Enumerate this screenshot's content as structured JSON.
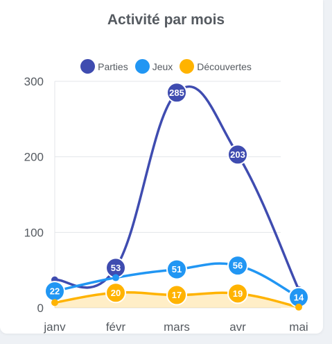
{
  "chart_data": {
    "type": "line",
    "title": "Activité par mois",
    "categories": [
      "janv",
      "févr",
      "mars",
      "avr",
      "mai"
    ],
    "ylim": [
      0,
      300
    ],
    "yticks": [
      0,
      100,
      200,
      300
    ],
    "grid": true,
    "legend_position": "top-center",
    "series": [
      {
        "name": "Parties",
        "color": "#3f4cb0",
        "values": [
          37,
          53,
          285,
          203,
          24
        ],
        "labels": [
          null,
          "53",
          "285",
          "203",
          null
        ],
        "fill": false
      },
      {
        "name": "Jeux",
        "color": "#2196f3",
        "values": [
          22,
          40,
          51,
          56,
          14
        ],
        "labels": [
          "22",
          null,
          "51",
          "56",
          "14"
        ],
        "fill": false
      },
      {
        "name": "Découvertes",
        "color": "#ffb300",
        "values": [
          7,
          20,
          17,
          19,
          1
        ],
        "labels": [
          null,
          "20",
          "17",
          "19",
          null
        ],
        "fill": true
      }
    ]
  }
}
